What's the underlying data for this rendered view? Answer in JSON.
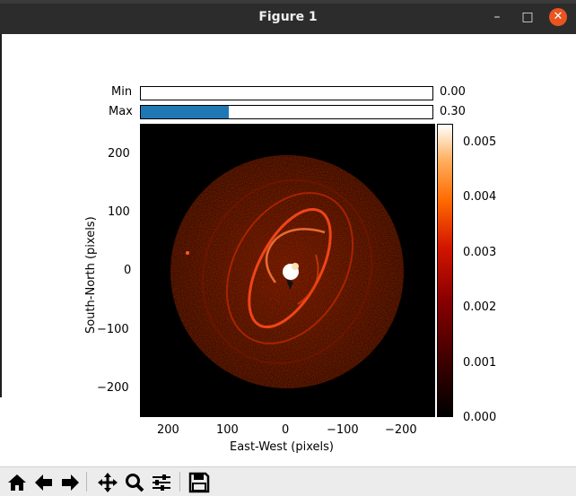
{
  "window": {
    "title": "Figure 1"
  },
  "sliders": [
    {
      "label": "Min",
      "value": "0.00",
      "fraction": 0.0
    },
    {
      "label": "Max",
      "value": "0.30",
      "fraction": 0.3
    }
  ],
  "plot": {
    "xlabel": "East-West (pixels)",
    "ylabel": "South-North (pixels)",
    "xticks": [
      "200",
      "100",
      "0",
      "−100",
      "−200"
    ],
    "yticks": [
      "200",
      "100",
      "0",
      "−100",
      "−200"
    ]
  },
  "colorbar": {
    "ticks": [
      "0.005",
      "0.004",
      "0.003",
      "0.002",
      "0.001",
      "0.000"
    ],
    "colormap": "gist_heat"
  },
  "toolbar": {
    "icons": [
      "home-icon",
      "back-icon",
      "forward-icon",
      "pan-icon",
      "zoom-icon",
      "configure-subplots-icon",
      "save-icon"
    ]
  }
}
